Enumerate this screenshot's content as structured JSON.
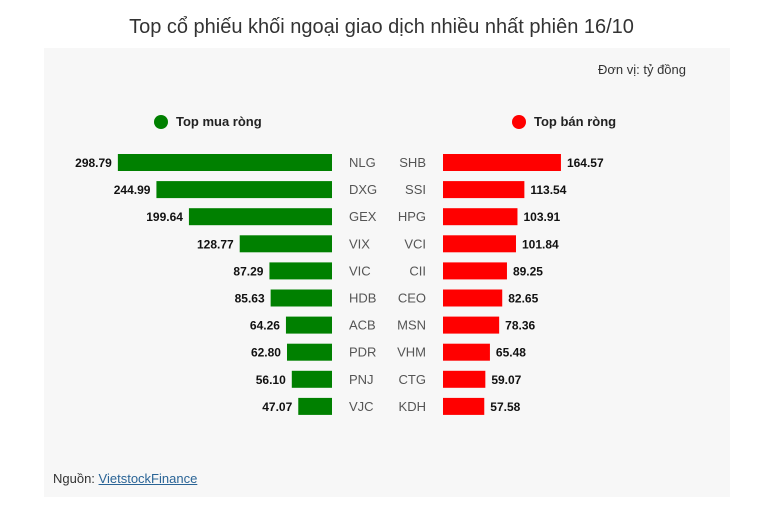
{
  "page_title": "Top cổ phiếu khối ngoại giao dịch nhiều nhất phiên 16/10",
  "unit_label": "Đơn vị: tỷ đồng",
  "source": {
    "label": "Nguồn:",
    "link_text": "VietstockFinance"
  },
  "colors": {
    "buy": "#008000",
    "sell": "#ff0000"
  },
  "chart_data": [
    {
      "type": "bar",
      "orientation": "horizontal",
      "title": "Top mua ròng",
      "categories": [
        "NLG",
        "DXG",
        "GEX",
        "VIX",
        "VIC",
        "HDB",
        "ACB",
        "PDR",
        "PNJ",
        "VJC"
      ],
      "values": [
        298.79,
        244.99,
        199.64,
        128.77,
        87.29,
        85.63,
        64.26,
        62.8,
        56.1,
        47.07
      ],
      "value_labels": [
        "298.79",
        "244.99",
        "199.64",
        "128.77",
        "87.29",
        "85.63",
        "64.26",
        "62.80",
        "56.10",
        "47.07"
      ],
      "direction": "leftward",
      "xlim": [
        0,
        300
      ]
    },
    {
      "type": "bar",
      "orientation": "horizontal",
      "title": "Top bán ròng",
      "categories": [
        "SHB",
        "SSI",
        "HPG",
        "VCI",
        "CII",
        "CEO",
        "MSN",
        "VHM",
        "CTG",
        "KDH"
      ],
      "values": [
        164.57,
        113.54,
        103.91,
        101.84,
        89.25,
        82.65,
        78.36,
        65.48,
        59.07,
        57.58
      ],
      "value_labels": [
        "164.57",
        "113.54",
        "103.91",
        "101.84",
        "89.25",
        "82.65",
        "78.36",
        "65.48",
        "59.07",
        "57.58"
      ],
      "direction": "rightward",
      "xlim": [
        0,
        300
      ]
    }
  ]
}
